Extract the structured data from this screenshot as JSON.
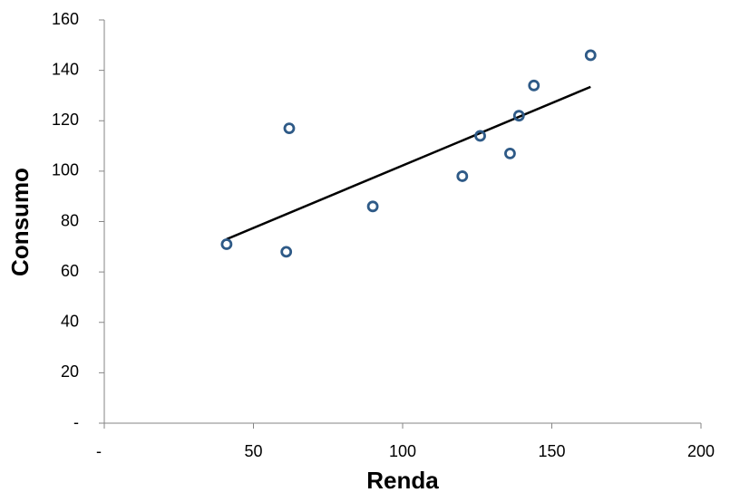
{
  "chart_data": {
    "type": "scatter",
    "x_label": "Renda",
    "y_label": "Consumo",
    "x": [
      41,
      61,
      62,
      90,
      120,
      126,
      136,
      139,
      144,
      163
    ],
    "series": [
      {
        "name": "Consumo",
        "color": "#2e5a87",
        "values": [
          71,
          68,
          117,
          86,
          98,
          114,
          107,
          122,
          134,
          146
        ]
      }
    ],
    "trendline": true,
    "trendline_color": "#000000",
    "xlim": [
      0,
      200
    ],
    "xticks": [
      {
        "value": 0,
        "label": "-"
      },
      50,
      100,
      150,
      200
    ],
    "ylim": [
      0,
      160
    ],
    "yticks": [
      {
        "value": 0,
        "label": "-"
      },
      20,
      40,
      60,
      80,
      100,
      120,
      140,
      160
    ],
    "grid": false
  }
}
